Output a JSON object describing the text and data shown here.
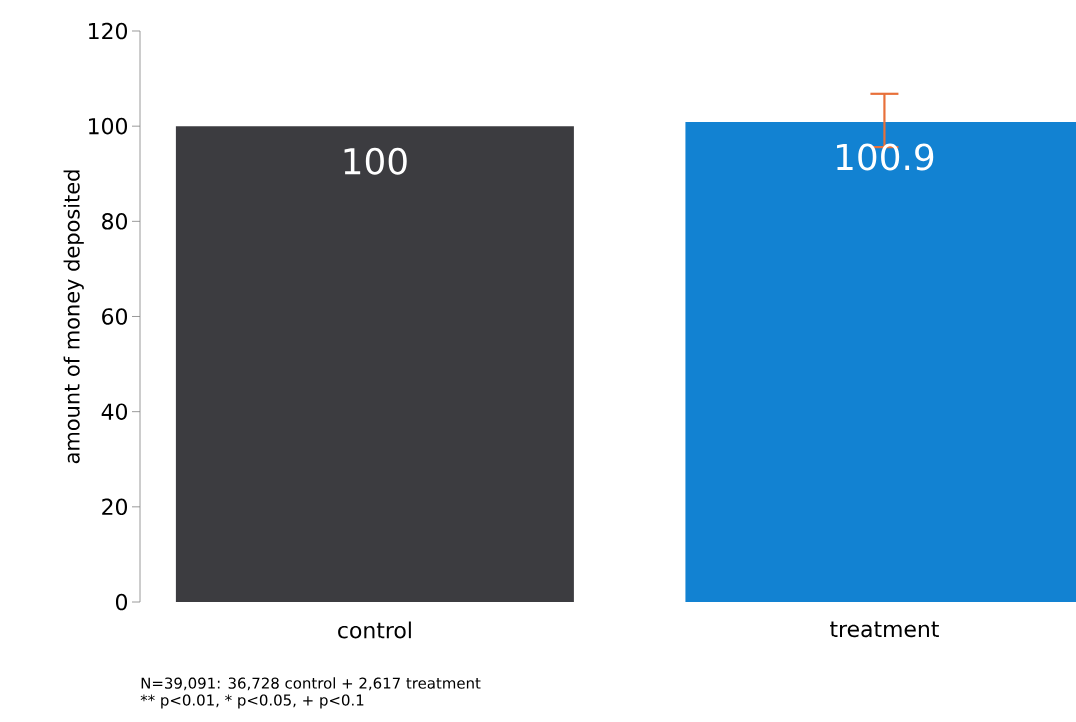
{
  "chart_data": {
    "type": "bar",
    "ylabel": "amount of money deposited",
    "categories": [
      "control",
      "treatment"
    ],
    "values": [
      100,
      100.9
    ],
    "colors": [
      "#3c3c40",
      "#1282d2"
    ],
    "errors": [
      null,
      [
        95.6,
        106.8
      ]
    ],
    "data_labels": true,
    "ylim": [
      0,
      120
    ],
    "yticks": [
      0,
      20,
      40,
      60,
      80,
      100,
      120
    ],
    "grid": false,
    "annotations": [
      "N=39,091: 36,728 control + 2,617 treatment",
      "** p<0.01, * p<0.05, + p<0.1"
    ]
  }
}
